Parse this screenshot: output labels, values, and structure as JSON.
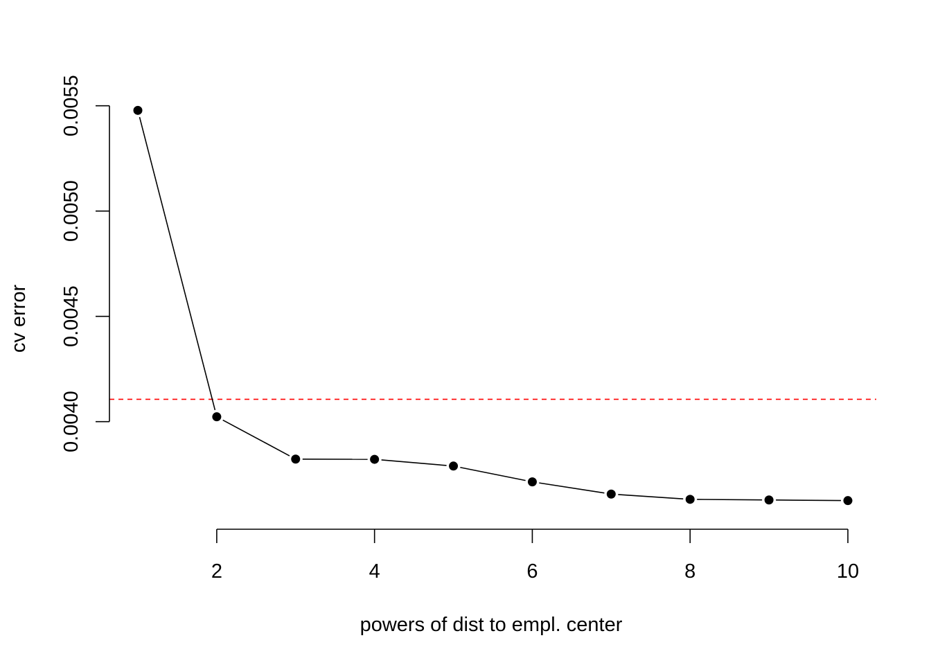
{
  "chart_data": {
    "type": "line",
    "title": "",
    "xlabel": "powers of dist to empl. center",
    "ylabel": "cv error",
    "x": [
      1,
      2,
      3,
      4,
      5,
      6,
      7,
      8,
      9,
      10
    ],
    "series": [
      {
        "values": [
          0.005478,
          0.004023,
          0.003822,
          0.003821,
          0.003789,
          0.003714,
          0.003656,
          0.003631,
          0.003628,
          0.003625
        ],
        "color": "#000000",
        "marker": "filled-circle",
        "line": "solid"
      }
    ],
    "reference_line": {
      "orientation": "horizontal",
      "y": 0.004106,
      "color": "#ff0000",
      "style": "dashed"
    },
    "xticks": [
      2,
      4,
      6,
      8,
      10
    ],
    "xtick_labels": [
      "2",
      "4",
      "6",
      "8",
      "10"
    ],
    "yticks": [
      0.004,
      0.0045,
      0.005,
      0.0055
    ],
    "ytick_labels": [
      "0.0040",
      "0.0045",
      "0.0050",
      "0.0055"
    ],
    "xlim": [
      0.64,
      10.36
    ],
    "ylim": [
      0.003591,
      0.005512
    ],
    "grid": false,
    "legend": "none"
  }
}
